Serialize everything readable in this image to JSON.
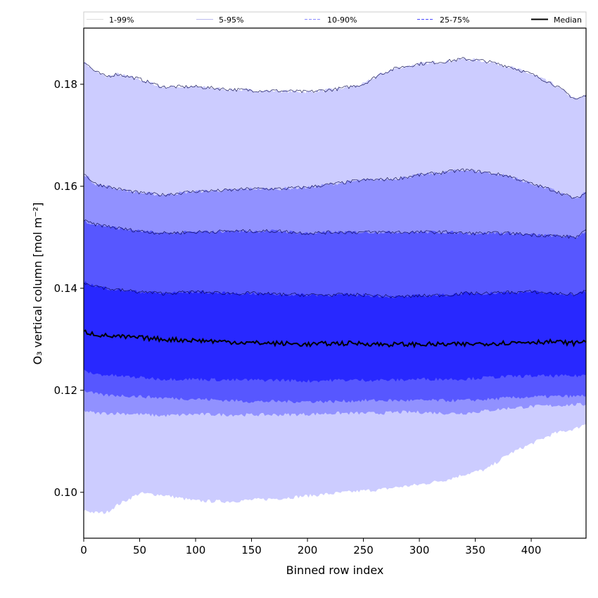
{
  "chart_data": {
    "type": "area",
    "xlabel": "Binned row index",
    "ylabel": "O₃ vertical column [mol m⁻²]",
    "xlim": [
      0,
      449
    ],
    "ylim": [
      0.091,
      0.191
    ],
    "xticks": [
      0,
      50,
      100,
      150,
      200,
      250,
      300,
      350,
      400
    ],
    "yticks": [
      0.1,
      0.12,
      0.14,
      0.16,
      0.18
    ],
    "ytick_labels": [
      "0.10",
      "0.12",
      "0.14",
      "0.16",
      "0.18"
    ],
    "legend_position": "top",
    "x": [
      0,
      10,
      20,
      30,
      50,
      70,
      100,
      130,
      150,
      175,
      200,
      225,
      250,
      265,
      280,
      300,
      325,
      340,
      360,
      380,
      400,
      420,
      440,
      449
    ],
    "bands": [
      {
        "name": "1-99%",
        "fill": "#ccccff",
        "upper": [
          0.1845,
          0.1825,
          0.1815,
          0.182,
          0.181,
          0.1795,
          0.1795,
          0.179,
          0.1788,
          0.1787,
          0.1785,
          0.179,
          0.18,
          0.182,
          0.1832,
          0.184,
          0.1845,
          0.185,
          0.1845,
          0.1835,
          0.182,
          0.18,
          0.177,
          0.1778
        ],
        "lower": [
          0.0965,
          0.096,
          0.096,
          0.0975,
          0.0998,
          0.0995,
          0.0983,
          0.0982,
          0.0985,
          0.0988,
          0.0993,
          0.0998,
          0.1003,
          0.1005,
          0.101,
          0.1015,
          0.1025,
          0.1035,
          0.1045,
          0.1075,
          0.1095,
          0.1115,
          0.1125,
          0.1135
        ]
      },
      {
        "name": "5-95%",
        "fill": "#9191ff",
        "upper": [
          0.1625,
          0.1605,
          0.16,
          0.1595,
          0.1587,
          0.1583,
          0.159,
          0.1592,
          0.1595,
          0.1595,
          0.1598,
          0.1605,
          0.1612,
          0.1613,
          0.1615,
          0.1622,
          0.1628,
          0.1632,
          0.1627,
          0.162,
          0.1605,
          0.1592,
          0.1575,
          0.1588
        ],
        "lower": [
          0.116,
          0.1155,
          0.1155,
          0.1155,
          0.1153,
          0.115,
          0.1153,
          0.1152,
          0.1152,
          0.1152,
          0.1153,
          0.1155,
          0.1155,
          0.1155,
          0.1157,
          0.1157,
          0.1155,
          0.1155,
          0.116,
          0.1165,
          0.1168,
          0.117,
          0.1172,
          0.1172
        ]
      },
      {
        "name": "10-90%",
        "fill": "#5757ff",
        "upper": [
          0.1532,
          0.1525,
          0.1522,
          0.1518,
          0.1512,
          0.1508,
          0.151,
          0.1512,
          0.1512,
          0.1512,
          0.1508,
          0.151,
          0.151,
          0.151,
          0.151,
          0.151,
          0.151,
          0.1508,
          0.1508,
          0.1508,
          0.1505,
          0.1503,
          0.15,
          0.1512
        ],
        "lower": [
          0.12,
          0.1193,
          0.119,
          0.119,
          0.1188,
          0.1185,
          0.1183,
          0.118,
          0.1178,
          0.1178,
          0.1178,
          0.1178,
          0.118,
          0.118,
          0.118,
          0.118,
          0.118,
          0.118,
          0.1182,
          0.1185,
          0.1187,
          0.1188,
          0.1188,
          0.119
        ]
      },
      {
        "name": "25-75%",
        "fill": "#2828ff",
        "upper": [
          0.1412,
          0.1405,
          0.14,
          0.1397,
          0.1393,
          0.139,
          0.1393,
          0.139,
          0.139,
          0.1388,
          0.1387,
          0.1387,
          0.1387,
          0.1385,
          0.1383,
          0.1385,
          0.1387,
          0.139,
          0.139,
          0.1392,
          0.1393,
          0.139,
          0.1388,
          0.1395
        ],
        "lower": [
          0.1238,
          0.1232,
          0.123,
          0.1228,
          0.1225,
          0.1222,
          0.1222,
          0.122,
          0.122,
          0.122,
          0.1218,
          0.122,
          0.122,
          0.122,
          0.122,
          0.1222,
          0.1222,
          0.1222,
          0.1225,
          0.1227,
          0.1228,
          0.1228,
          0.1228,
          0.123
        ]
      }
    ],
    "median": {
      "name": "Median",
      "color": "#000000",
      "values": [
        0.1315,
        0.131,
        0.1307,
        0.1305,
        0.1303,
        0.13,
        0.1298,
        0.1295,
        0.1293,
        0.1292,
        0.129,
        0.1292,
        0.1292,
        0.129,
        0.129,
        0.129,
        0.129,
        0.129,
        0.1292,
        0.1293,
        0.1295,
        0.1295,
        0.1292,
        0.1298
      ]
    },
    "legend": [
      {
        "label": "1-99%",
        "color": "#dddddd",
        "style": "solid"
      },
      {
        "label": "5-95%",
        "color": "#bbbbee",
        "style": "solid"
      },
      {
        "label": "10-90%",
        "color": "#8a8aff",
        "style": "dashed"
      },
      {
        "label": "25-75%",
        "color": "#4a4aff",
        "style": "dashed"
      },
      {
        "label": "Median",
        "color": "#000000",
        "style": "solid"
      }
    ]
  }
}
